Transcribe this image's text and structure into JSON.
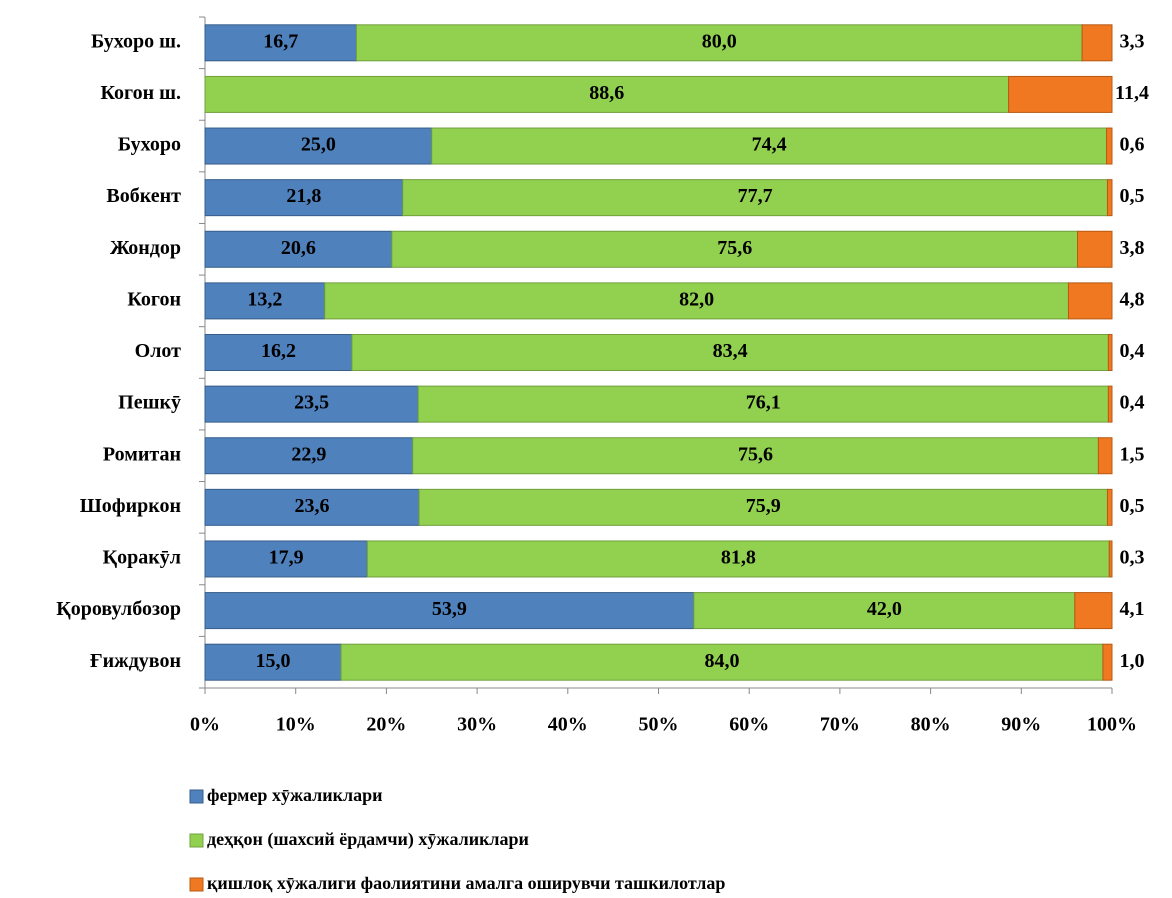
{
  "chart_data": {
    "type": "stacked_barh",
    "categories": [
      "Бухоро ш.",
      "Когон ш.",
      "Бухоро",
      "Вобкент",
      "Жондор",
      "Когон",
      "Олот",
      "Пешкӯ",
      "Ромитан",
      "Шофиркон",
      "Қоракӯл",
      "Қоровулбозор",
      "Ғиждувон"
    ],
    "series": [
      {
        "name": "фермер хӯжаликлари",
        "color": "#4f81bd",
        "values": [
          16.7,
          0,
          25.0,
          21.8,
          20.6,
          13.2,
          16.2,
          23.5,
          22.9,
          23.6,
          17.9,
          53.9,
          15.0
        ],
        "value_labels": [
          "16,7",
          null,
          "25,0",
          "21,8",
          "20,6",
          "13,2",
          "16,2",
          "23,5",
          "22,9",
          "23,6",
          "17,9",
          "53,9",
          "15,0"
        ]
      },
      {
        "name": "деҳқон (шахсий ёрдамчи) хӯжаликлари",
        "color": "#92d050",
        "values": [
          80.0,
          88.6,
          74.4,
          77.7,
          75.6,
          82.0,
          83.4,
          76.1,
          75.6,
          75.9,
          81.8,
          42.0,
          84.0
        ],
        "value_labels": [
          "80,0",
          "88,6",
          "74,4",
          "77,7",
          "75,6",
          "82,0",
          "83,4",
          "76,1",
          "75,6",
          "75,9",
          "81,8",
          "42,0",
          "84,0"
        ]
      },
      {
        "name": "қишлоқ хӯжалиги фаолиятини амалга оширувчи ташкилотлар",
        "color": "#f07820",
        "values": [
          3.3,
          11.4,
          0.6,
          0.5,
          3.8,
          4.8,
          0.4,
          0.4,
          1.5,
          0.5,
          0.3,
          4.1,
          1.0
        ],
        "value_labels": [
          "3,3",
          "11,4",
          "0,6",
          "0,5",
          "3,8",
          "4,8",
          "0,4",
          "0,4",
          "1,5",
          "0,5",
          "0,3",
          "4,1",
          "1,0"
        ]
      }
    ],
    "xlim": [
      0,
      100
    ],
    "xticks": [
      {
        "value": 0,
        "label": "0%"
      },
      {
        "value": 10,
        "label": "10%"
      },
      {
        "value": 20,
        "label": "20%"
      },
      {
        "value": 30,
        "label": "30%"
      },
      {
        "value": 40,
        "label": "40%"
      },
      {
        "value": 50,
        "label": "50%"
      },
      {
        "value": 60,
        "label": "60%"
      },
      {
        "value": 70,
        "label": "70%"
      },
      {
        "value": 80,
        "label": "80%"
      },
      {
        "value": 90,
        "label": "90%"
      },
      {
        "value": 100,
        "label": "100%"
      }
    ],
    "legend": "bottom"
  }
}
